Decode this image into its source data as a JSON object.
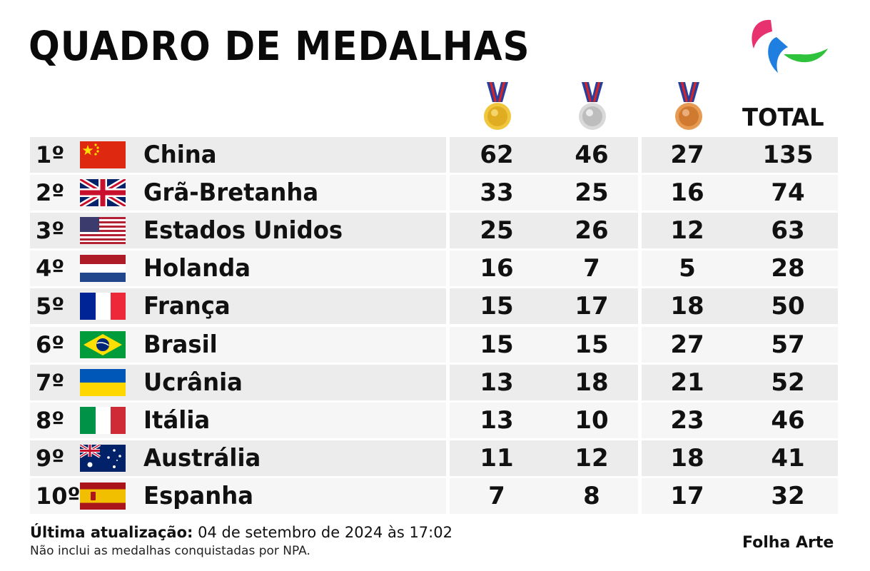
{
  "title": "QUADRO DE MEDALHAS",
  "header": {
    "total_label": "TOTAL"
  },
  "medal_icons": [
    "gold-medal-icon",
    "silver-medal-icon",
    "bronze-medal-icon"
  ],
  "colors": {
    "row_dark": "#ececec",
    "row_light": "#f6f6f6",
    "text": "#111111"
  },
  "rows": [
    {
      "rank": "1º",
      "country": "China",
      "flag": "china-flag-icon",
      "gold": "62",
      "silver": "46",
      "bronze": "27",
      "total": "135"
    },
    {
      "rank": "2º",
      "country": "Grã-Bretanha",
      "flag": "uk-flag-icon",
      "gold": "33",
      "silver": "25",
      "bronze": "16",
      "total": "74"
    },
    {
      "rank": "3º",
      "country": "Estados Unidos",
      "flag": "usa-flag-icon",
      "gold": "25",
      "silver": "26",
      "bronze": "12",
      "total": "63"
    },
    {
      "rank": "4º",
      "country": "Holanda",
      "flag": "netherlands-flag-icon",
      "gold": "16",
      "silver": "7",
      "bronze": "5",
      "total": "28"
    },
    {
      "rank": "5º",
      "country": "França",
      "flag": "france-flag-icon",
      "gold": "15",
      "silver": "17",
      "bronze": "18",
      "total": "50"
    },
    {
      "rank": "6º",
      "country": "Brasil",
      "flag": "brazil-flag-icon",
      "gold": "15",
      "silver": "15",
      "bronze": "27",
      "total": "57"
    },
    {
      "rank": "7º",
      "country": "Ucrânia",
      "flag": "ukraine-flag-icon",
      "gold": "13",
      "silver": "18",
      "bronze": "21",
      "total": "52"
    },
    {
      "rank": "8º",
      "country": "Itália",
      "flag": "italy-flag-icon",
      "gold": "13",
      "silver": "10",
      "bronze": "23",
      "total": "46"
    },
    {
      "rank": "9º",
      "country": "Austrália",
      "flag": "australia-flag-icon",
      "gold": "11",
      "silver": "12",
      "bronze": "18",
      "total": "41"
    },
    {
      "rank": "10º",
      "country": "Espanha",
      "flag": "spain-flag-icon",
      "gold": "7",
      "silver": "8",
      "bronze": "17",
      "total": "32"
    }
  ],
  "footer": {
    "update_label": "Última atualização:",
    "update_value": " 04 de setembro de 2024 às 17:02",
    "note": "Não inclui as medalhas conquistadas por NPA.",
    "credit": "Folha Arte"
  }
}
